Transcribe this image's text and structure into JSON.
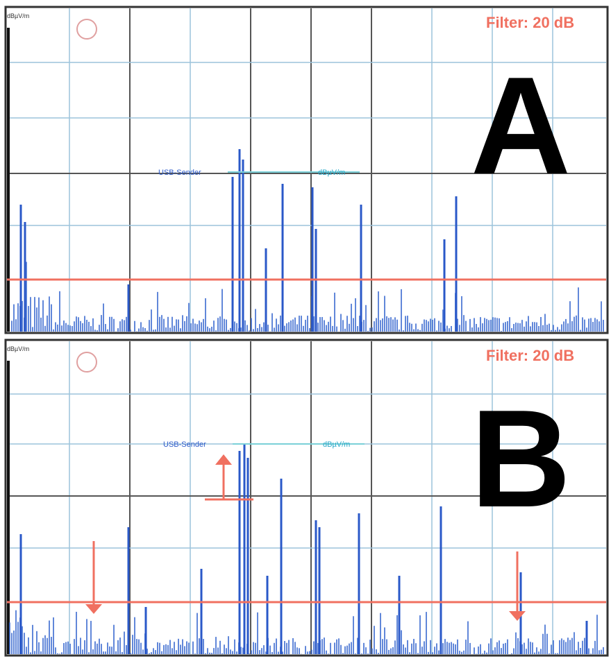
{
  "panels": [
    {
      "label": "A",
      "filter": "Filter: 20 dB",
      "marker": "USB-Sender",
      "unit": "dBµV/m"
    },
    {
      "label": "B",
      "filter": "Filter: 20 dB",
      "marker": "USB-Sender",
      "unit": "dBµV/m"
    }
  ]
}
